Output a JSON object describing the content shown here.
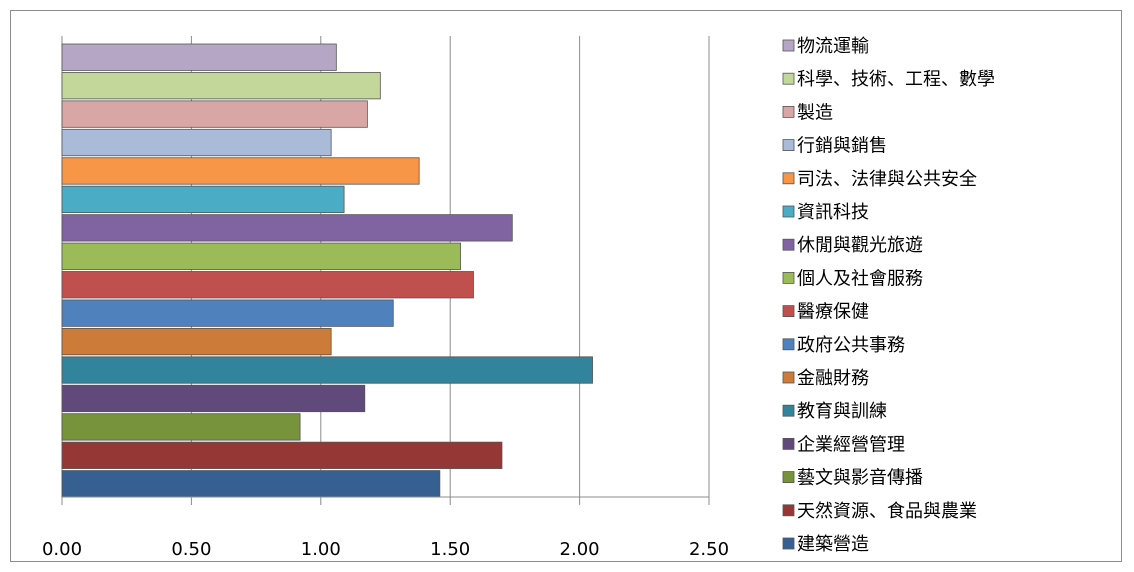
{
  "chart_data": {
    "type": "bar",
    "orientation": "horizontal",
    "grid": true,
    "legend": "right",
    "xlim": [
      0,
      2.5
    ],
    "x_ticks": [
      "0.00",
      "0.50",
      "1.00",
      "1.50",
      "2.00",
      "2.50"
    ],
    "categories": [
      "物流運輸",
      "科學、技術、工程、數學",
      "製造",
      "行銷與銷售",
      "司法、法律與公共安全",
      "資訊科技",
      "休閒與觀光旅遊",
      "個人及社會服務",
      "醫療保健",
      "政府公共事務",
      "金融財務",
      "教育與訓練",
      "企業經營管理",
      "藝文與影音傳播",
      "天然資源、食品與農業",
      "建築營造"
    ],
    "values": [
      1.06,
      1.23,
      1.18,
      1.04,
      1.38,
      1.09,
      1.74,
      1.54,
      1.59,
      1.28,
      1.04,
      2.05,
      1.17,
      0.92,
      1.7,
      1.46
    ],
    "colors": [
      "#b5a6c6",
      "#c4d79b",
      "#d9a6a6",
      "#a9bbd9",
      "#f79646",
      "#4bacc6",
      "#8064a2",
      "#9bbb59",
      "#c0504d",
      "#4f81bd",
      "#cc7b38",
      "#31849b",
      "#604a7b",
      "#77933c",
      "#953735",
      "#366092"
    ]
  }
}
